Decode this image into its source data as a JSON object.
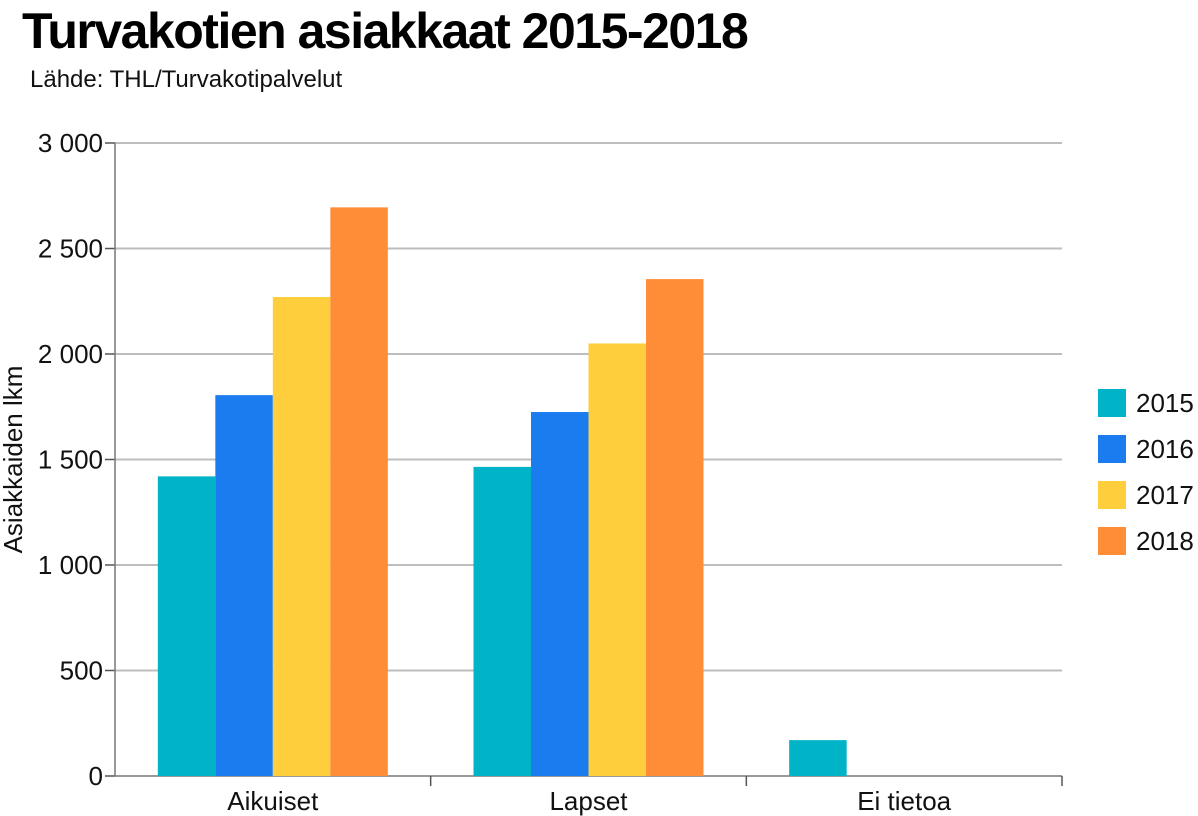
{
  "title": "Turvakotien asiakkaat 2015-2018",
  "subtitle": "Lähde: THL/Turvakotipalvelut",
  "chart_data": {
    "type": "bar",
    "title": "Turvakotien asiakkaat 2015-2018",
    "subtitle": "Lähde: THL/Turvakotipalvelut",
    "ylabel": "Asiakkaiden lkm",
    "xlabel": "",
    "ylim": [
      0,
      3000
    ],
    "yticks": [
      0,
      500,
      1000,
      1500,
      2000,
      2500,
      3000
    ],
    "ytick_labels": [
      "0",
      "500",
      "1 000",
      "1 500",
      "2 000",
      "2 500",
      "3 000"
    ],
    "categories": [
      "Aikuiset",
      "Lapset",
      "Ei tietoa"
    ],
    "series": [
      {
        "name": "2015",
        "color": "#00b3c7",
        "values": [
          1420,
          1465,
          170
        ]
      },
      {
        "name": "2016",
        "color": "#1a7cee",
        "values": [
          1805,
          1725,
          0
        ]
      },
      {
        "name": "2017",
        "color": "#ffce3c",
        "values": [
          2270,
          2050,
          0
        ]
      },
      {
        "name": "2018",
        "color": "#ff8c37",
        "values": [
          2695,
          2355,
          0
        ]
      }
    ],
    "grid": true,
    "legend_position": "right"
  }
}
